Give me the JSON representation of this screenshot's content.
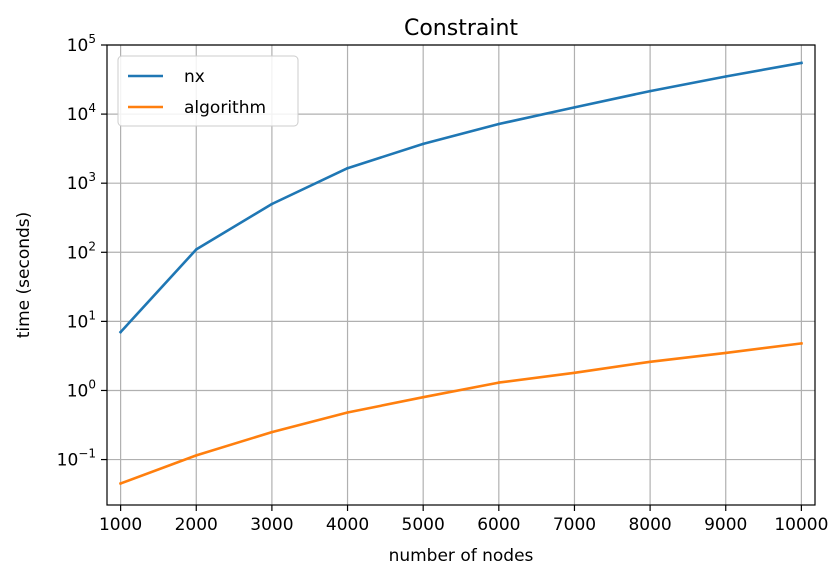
{
  "chart_data": {
    "type": "line",
    "title": "Constraint",
    "xlabel": "number of nodes",
    "ylabel": "time (seconds)",
    "yscale": "log",
    "grid": true,
    "legend_position": "upper-left",
    "xlim": [
      820,
      10180
    ],
    "ylim": [
      0.022,
      100000
    ],
    "x": [
      1000,
      2000,
      3000,
      4000,
      5000,
      6000,
      7000,
      8000,
      9000,
      10000
    ],
    "xticks": [
      {
        "value": 1000,
        "label": "1000"
      },
      {
        "value": 2000,
        "label": "2000"
      },
      {
        "value": 3000,
        "label": "3000"
      },
      {
        "value": 4000,
        "label": "4000"
      },
      {
        "value": 5000,
        "label": "5000"
      },
      {
        "value": 6000,
        "label": "6000"
      },
      {
        "value": 7000,
        "label": "7000"
      },
      {
        "value": 8000,
        "label": "8000"
      },
      {
        "value": 9000,
        "label": "9000"
      },
      {
        "value": 10000,
        "label": "10000"
      }
    ],
    "yticks": [
      {
        "value": 0.1,
        "base": "10",
        "exponent": "−1"
      },
      {
        "value": 1,
        "base": "10",
        "exponent": "0"
      },
      {
        "value": 10,
        "base": "10",
        "exponent": "1"
      },
      {
        "value": 100,
        "base": "10",
        "exponent": "2"
      },
      {
        "value": 1000,
        "base": "10",
        "exponent": "3"
      },
      {
        "value": 10000,
        "base": "10",
        "exponent": "4"
      },
      {
        "value": 100000,
        "base": "10",
        "exponent": "5"
      }
    ],
    "series": [
      {
        "name": "nx",
        "color": "#1f77b4",
        "values": [
          7,
          110,
          500,
          1650,
          3700,
          7200,
          12500,
          21500,
          35000,
          55000
        ]
      },
      {
        "name": "algorithm",
        "color": "#ff7f0e",
        "values": [
          0.045,
          0.115,
          0.25,
          0.48,
          0.8,
          1.3,
          1.8,
          2.6,
          3.5,
          4.8
        ]
      }
    ]
  }
}
